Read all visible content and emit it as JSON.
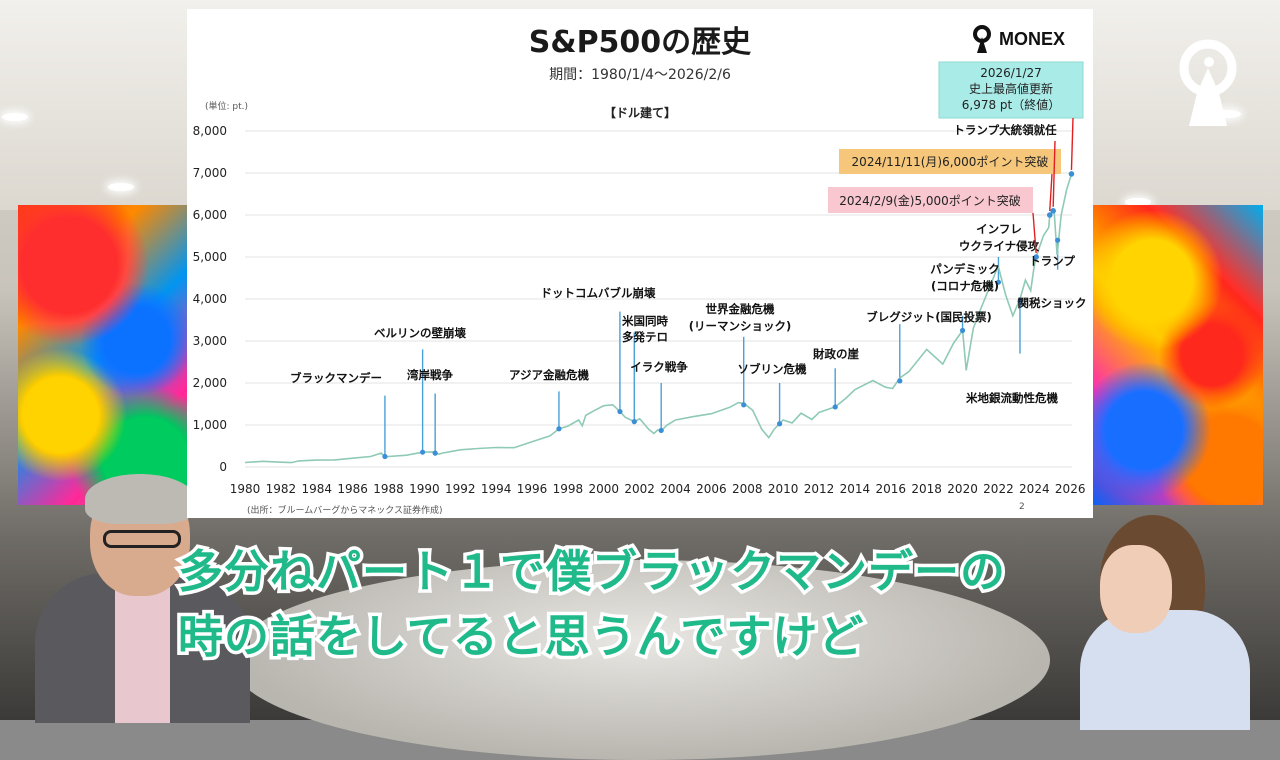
{
  "slide": {
    "title": "S&P500の歴史",
    "subtitle": "期間：1980/1/4〜2026/2/6",
    "logo_text": "MONEX",
    "unit_label": "(単位: pt.)",
    "currency_note": "【ドル建て】",
    "source_note": "(出所：ブルームバーグからマネックス証券作成)",
    "page_number": "2"
  },
  "chart_data": {
    "type": "line",
    "x_range": [
      1980,
      2026.1
    ],
    "ylim": [
      0,
      8000
    ],
    "grid": true,
    "y_ticks": [
      0,
      1000,
      2000,
      3000,
      4000,
      5000,
      6000,
      7000,
      8000
    ],
    "y_tick_labels": [
      "0",
      "1,000",
      "2,000",
      "3,000",
      "4,000",
      "5,000",
      "6,000",
      "7,000",
      "8,000"
    ],
    "x_ticks": [
      "1980",
      "1982",
      "1984",
      "1986",
      "1988",
      "1990",
      "1992",
      "1994",
      "1996",
      "1998",
      "2000",
      "2002",
      "2004",
      "2006",
      "2008",
      "2010",
      "2012",
      "2014",
      "2016",
      "2018",
      "2020",
      "2022",
      "2024",
      "2026"
    ],
    "line_color": "#8fc9b7",
    "marker_color": "#3b8fd6",
    "series": [
      {
        "points": [
          [
            1980.0,
            108
          ],
          [
            1981.0,
            135
          ],
          [
            1982.0,
            115
          ],
          [
            1982.6,
            105
          ],
          [
            1983.0,
            145
          ],
          [
            1984.0,
            165
          ],
          [
            1985.0,
            170
          ],
          [
            1986.0,
            210
          ],
          [
            1987.0,
            250
          ],
          [
            1987.6,
            330
          ],
          [
            1987.8,
            235
          ],
          [
            1988.0,
            250
          ],
          [
            1989.0,
            280
          ],
          [
            1989.9,
            353
          ],
          [
            1990.5,
            360
          ],
          [
            1990.8,
            305
          ],
          [
            1991.0,
            330
          ],
          [
            1992.0,
            410
          ],
          [
            1993.0,
            440
          ],
          [
            1994.0,
            465
          ],
          [
            1995.0,
            460
          ],
          [
            1996.0,
            600
          ],
          [
            1997.0,
            740
          ],
          [
            1997.5,
            910
          ],
          [
            1998.0,
            975
          ],
          [
            1998.6,
            1120
          ],
          [
            1998.8,
            980
          ],
          [
            1999.0,
            1230
          ],
          [
            1999.5,
            1350
          ],
          [
            2000.0,
            1460
          ],
          [
            2000.5,
            1480
          ],
          [
            2000.9,
            1320
          ],
          [
            2001.2,
            1180
          ],
          [
            2001.7,
            1080
          ],
          [
            2002.0,
            1150
          ],
          [
            2002.5,
            900
          ],
          [
            2002.8,
            800
          ],
          [
            2003.0,
            880
          ],
          [
            2003.2,
            860
          ],
          [
            2003.5,
            990
          ],
          [
            2004.0,
            1120
          ],
          [
            2005.0,
            1200
          ],
          [
            2006.0,
            1270
          ],
          [
            2007.0,
            1420
          ],
          [
            2007.5,
            1530
          ],
          [
            2007.8,
            1520
          ],
          [
            2008.3,
            1350
          ],
          [
            2008.8,
            900
          ],
          [
            2009.2,
            700
          ],
          [
            2009.5,
            900
          ],
          [
            2010.0,
            1120
          ],
          [
            2010.5,
            1050
          ],
          [
            2011.0,
            1280
          ],
          [
            2011.6,
            1130
          ],
          [
            2012.0,
            1300
          ],
          [
            2012.9,
            1430
          ],
          [
            2013.5,
            1640
          ],
          [
            2014.0,
            1840
          ],
          [
            2015.0,
            2060
          ],
          [
            2015.7,
            1900
          ],
          [
            2016.1,
            1870
          ],
          [
            2016.5,
            2120
          ],
          [
            2017.0,
            2270
          ],
          [
            2018.0,
            2800
          ],
          [
            2018.9,
            2450
          ],
          [
            2019.5,
            2950
          ],
          [
            2020.0,
            3250
          ],
          [
            2020.2,
            2300
          ],
          [
            2020.6,
            3300
          ],
          [
            2021.0,
            3750
          ],
          [
            2021.9,
            4700
          ],
          [
            2022.0,
            4770
          ],
          [
            2022.4,
            4100
          ],
          [
            2022.8,
            3600
          ],
          [
            2023.2,
            4000
          ],
          [
            2023.5,
            4450
          ],
          [
            2023.8,
            4200
          ],
          [
            2024.0,
            4800
          ],
          [
            2024.1,
            5000
          ],
          [
            2024.5,
            5500
          ],
          [
            2024.8,
            5700
          ],
          [
            2024.86,
            6000
          ],
          [
            2025.1,
            6100
          ],
          [
            2025.27,
            5050
          ],
          [
            2025.5,
            6000
          ],
          [
            2025.8,
            6600
          ],
          [
            2026.07,
            6978
          ]
        ]
      }
    ],
    "event_markers": [
      {
        "year": 1987.8,
        "value": 250,
        "line_top": 1700
      },
      {
        "year": 1989.9,
        "value": 353,
        "line_top": 2800
      },
      {
        "year": 1990.6,
        "value": 330,
        "line_top": 1750
      },
      {
        "year": 1997.5,
        "value": 910,
        "line_top": 1800
      },
      {
        "year": 2000.9,
        "value": 1320,
        "line_top": 3700
      },
      {
        "year": 2001.7,
        "value": 1080,
        "line_top": 3200
      },
      {
        "year": 2003.2,
        "value": 870,
        "line_top": 2000
      },
      {
        "year": 2007.8,
        "value": 1480,
        "line_top": 3100
      },
      {
        "year": 2009.8,
        "value": 1030,
        "line_top": 2000
      },
      {
        "year": 2012.9,
        "value": 1430,
        "line_top": 2350
      },
      {
        "year": 2016.5,
        "value": 2050,
        "line_top": 3400
      },
      {
        "year": 2020.0,
        "value": 3250,
        "line_top": 3600
      },
      {
        "year": 2022.0,
        "value": 4400,
        "line_top": 5000
      },
      {
        "year": 2023.2,
        "value": 3950,
        "line_top": 2700
      },
      {
        "year": 2025.3,
        "value": 5400,
        "line_top": 4700
      }
    ],
    "highlight_points": [
      {
        "year": 2024.1,
        "value": 5000
      },
      {
        "year": 2024.86,
        "value": 6000
      },
      {
        "year": 2025.05,
        "value": 6100
      },
      {
        "year": 2026.07,
        "value": 6978
      }
    ],
    "annotations": [
      {
        "text": "ブラックマンデー",
        "year": 1987.8
      },
      {
        "text": "ベルリンの壁崩壊",
        "year": 1989.9
      },
      {
        "text": "湾岸戦争",
        "year": 1990.6
      },
      {
        "text": "アジア金融危機",
        "year": 1997.5
      },
      {
        "text": "ドットコムバブル崩壊",
        "year": 2000.9
      },
      {
        "text": "米国同時",
        "year": 2001.7
      },
      {
        "text": "多発テロ",
        "year": 2001.7
      },
      {
        "text": "イラク戦争",
        "year": 2003.2
      },
      {
        "text": "世界金融危機",
        "year": 2007.8
      },
      {
        "text": "(リーマンショック)",
        "year": 2007.8
      },
      {
        "text": "ソブリン危機",
        "year": 2009.8
      },
      {
        "text": "財政の崖",
        "year": 2012.9
      },
      {
        "text": "ブレグジット(国民投票)",
        "year": 2016.5
      },
      {
        "text": "パンデミック",
        "year": 2020.0
      },
      {
        "text": "(コロナ危機)",
        "year": 2020.0
      },
      {
        "text": "インフレ",
        "year": 2022.0
      },
      {
        "text": "ウクライナ侵攻",
        "year": 2022.0
      },
      {
        "text": "米地銀流動性危機",
        "year": 2023.2
      },
      {
        "text": "トランプ",
        "year": 2025.3
      },
      {
        "text": "関税ショック",
        "year": 2025.3
      },
      {
        "text": "トランプ大統領就任",
        "year": 2025.05
      }
    ],
    "callouts": [
      {
        "text": "2024/2/9(金)5,000ポイント突破",
        "color": "#f8c7cf",
        "year": 2024.1,
        "value": 5000
      },
      {
        "text": "2024/11/11(月)6,000ポイント突破",
        "color": "#f6c77a",
        "year": 2024.86,
        "value": 6000
      },
      {
        "lines": [
          "2026/1/27",
          "史上最高値更新",
          "6,978 pt（終値）"
        ],
        "color": "#a9ebe7",
        "year": 2026.07,
        "value": 6978
      }
    ]
  },
  "caption": {
    "line1": "多分ねパート１で僕ブラックマンデーの",
    "line2": "時の話をしてると思うんですけど"
  }
}
